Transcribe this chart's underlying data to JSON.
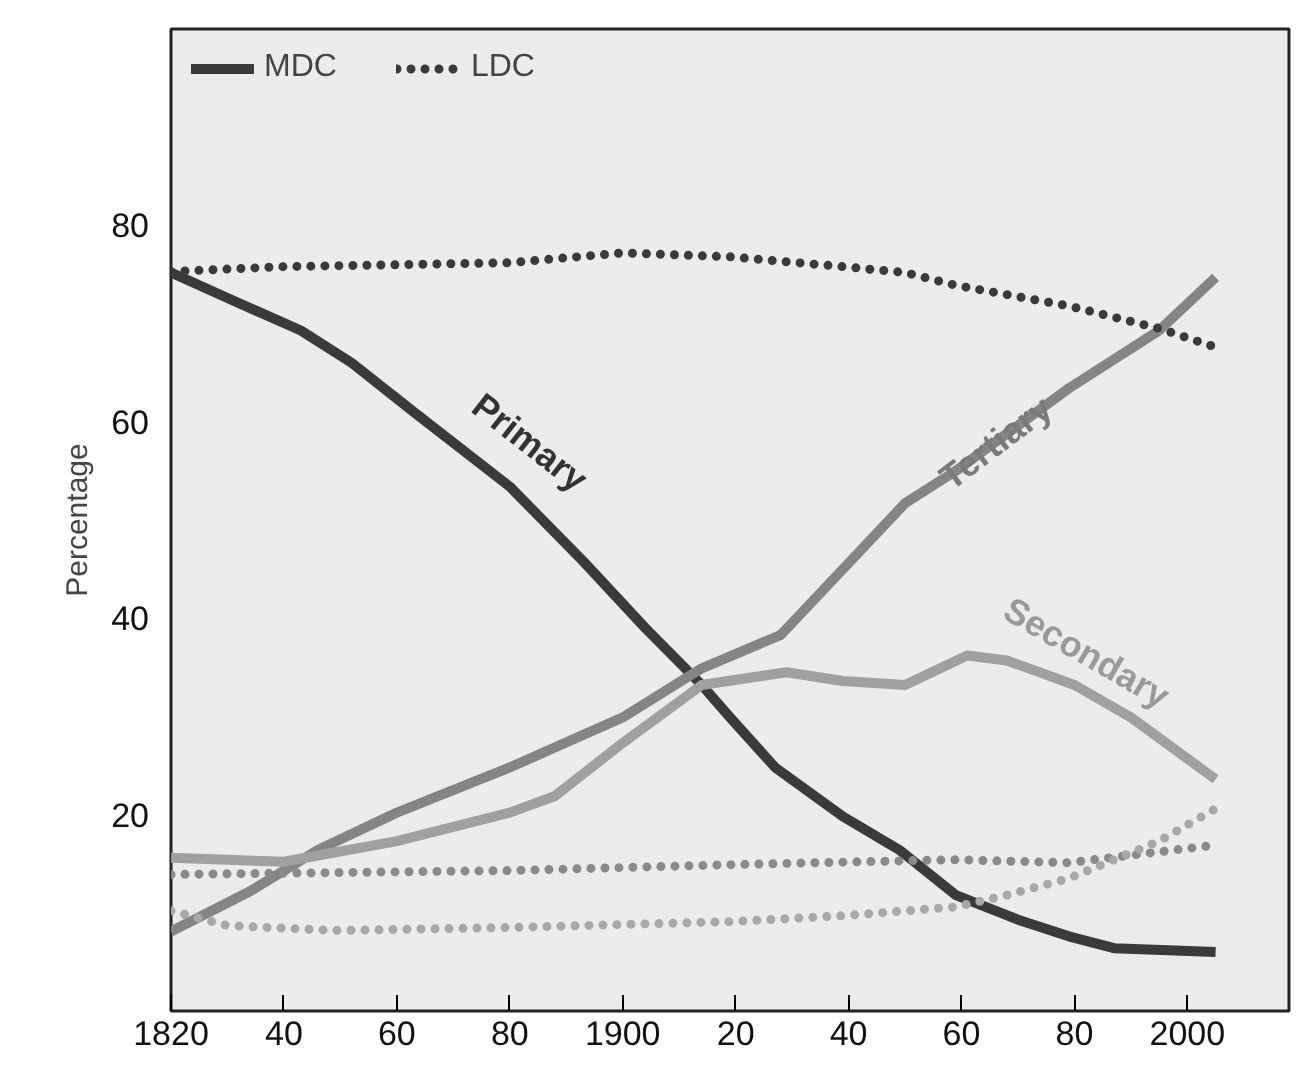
{
  "chart_data": {
    "type": "line",
    "ylabel": "Percentage",
    "xlim": [
      1820,
      2018
    ],
    "ylim": [
      0,
      100
    ],
    "xticks": [
      {
        "value": 1820,
        "label": "1820"
      },
      {
        "value": 1840,
        "label": "40"
      },
      {
        "value": 1860,
        "label": "60"
      },
      {
        "value": 1880,
        "label": "80"
      },
      1900,
      {
        "value": 1920,
        "label": "20"
      },
      {
        "value": 1940,
        "label": "40"
      },
      {
        "value": 1960,
        "label": "60"
      },
      {
        "value": 1980,
        "label": "80"
      },
      2000
    ],
    "yticks": [
      20,
      40,
      60,
      80
    ],
    "grid": false,
    "legend": "top left",
    "marker": "none",
    "series": [
      {
        "name": "MDC",
        "color": "#3a3a3a",
        "line_style": "solid",
        "x": [
          1820,
          1830,
          1843,
          1852,
          1863,
          1880,
          1893,
          1904,
          1914,
          1919,
          1927,
          1939,
          1949,
          1959,
          1970,
          1979,
          1987,
          2005
        ],
        "values": [
          75.2,
          72.6,
          69.3,
          66,
          61,
          53.4,
          45.8,
          39,
          33.2,
          29.9,
          24.8,
          19.8,
          16.4,
          11.8,
          9.3,
          7.6,
          6.4,
          6.0
        ]
      },
      {
        "color": "#858585",
        "line_style": "solid",
        "x": [
          1820,
          1834,
          1846,
          1860,
          1880,
          1900,
          1914,
          1928,
          1939,
          1950,
          1959,
          1979,
          1995,
          2005
        ],
        "values": [
          8.1,
          12.2,
          16.4,
          20.2,
          24.8,
          29.9,
          34.9,
          38.3,
          45,
          51.7,
          55,
          63.4,
          69.3,
          74.7
        ]
      },
      {
        "color": "#a0a0a0",
        "line_style": "solid",
        "x": [
          1820,
          1840,
          1860,
          1880,
          1888,
          1900,
          1914,
          1929,
          1939,
          1950,
          1961,
          1968,
          1980,
          1990,
          2005
        ],
        "values": [
          15.6,
          15.2,
          17.3,
          20.2,
          21.9,
          27.3,
          33.2,
          34.5,
          33.6,
          33.2,
          36.2,
          35.7,
          33.2,
          29.9,
          23.6
        ]
      },
      {
        "name": "LDC",
        "color": "#3a3a3a",
        "line_style": "dotted",
        "x": [
          1820,
          1840,
          1880,
          1900,
          1919,
          1939,
          1950,
          1959,
          1979,
          1995,
          2005
        ],
        "values": [
          75.3,
          75.8,
          76.2,
          77.2,
          76.8,
          75.8,
          75.2,
          73.9,
          71.8,
          69.5,
          67.6
        ]
      },
      {
        "color": "#8a8a8a",
        "line_style": "dotted",
        "x": [
          1820,
          1880,
          1919,
          1950,
          1959,
          1979,
          2005
        ],
        "values": [
          13.9,
          14.3,
          14.9,
          15.3,
          15.4,
          15.1,
          16.9
        ]
      },
      {
        "color": "#a8a8a8",
        "line_style": "dotted",
        "x": [
          1820,
          1830,
          1849,
          1880,
          1919,
          1939,
          1959,
          1968,
          1979,
          1995,
          2005
        ],
        "values": [
          10.2,
          8.7,
          8.2,
          8.5,
          9.1,
          9.7,
          10.6,
          11.8,
          13.5,
          17.3,
          20.6
        ]
      }
    ],
    "annotations": [
      {
        "text": "Primary",
        "x": 1880,
        "y": 53.4
      },
      {
        "text": "Tertiary",
        "x": 1959,
        "y": 55
      },
      {
        "text": "Secondary",
        "x": 1980,
        "y": 33.2
      }
    ]
  }
}
